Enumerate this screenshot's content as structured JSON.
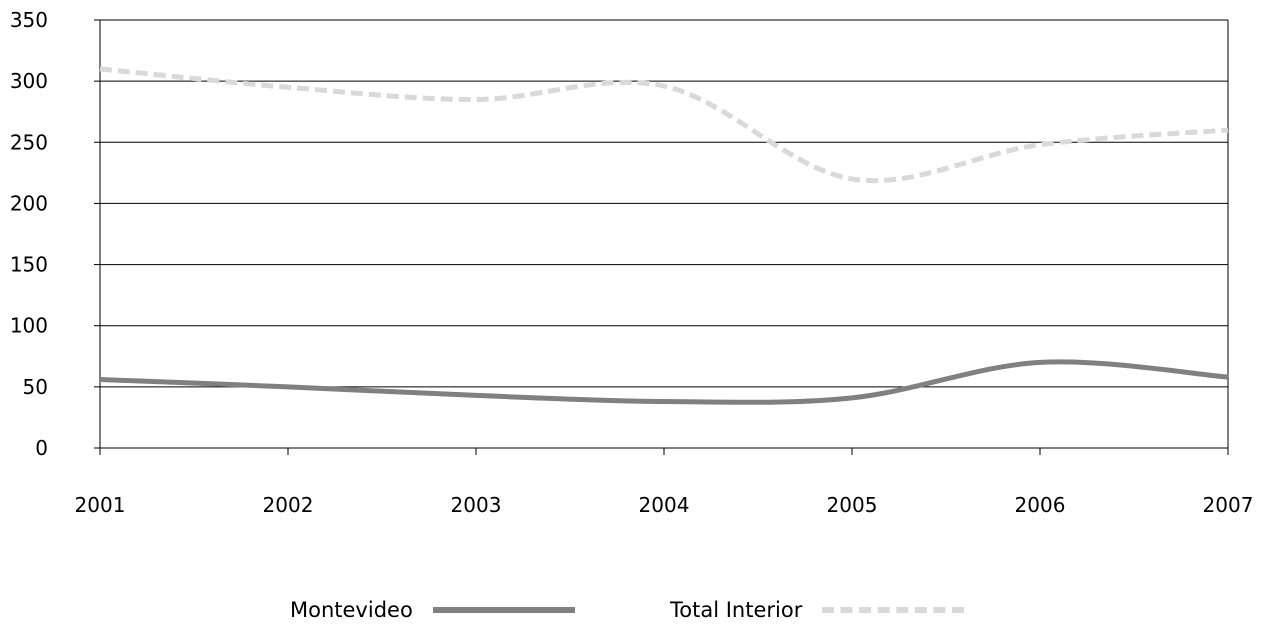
{
  "chart_data": {
    "type": "line",
    "title": "",
    "xlabel": "",
    "ylabel": "",
    "x": [
      "2001",
      "2002",
      "2003",
      "2004",
      "2005",
      "2006",
      "2007"
    ],
    "ylim": [
      0,
      350
    ],
    "yticks": [
      "0",
      "50",
      "100",
      "150",
      "200",
      "250",
      "300",
      "350"
    ],
    "grid": "horizontal",
    "legend": "bottom",
    "series": [
      {
        "name": "Montevideo",
        "values": [
          56,
          50,
          43,
          38,
          41,
          70,
          58
        ],
        "color": "#808080",
        "style": "solid"
      },
      {
        "name": "Total Interior",
        "values": [
          310,
          295,
          285,
          296,
          220,
          248,
          260
        ],
        "color": "#d9d9d9",
        "style": "dashed"
      }
    ]
  }
}
